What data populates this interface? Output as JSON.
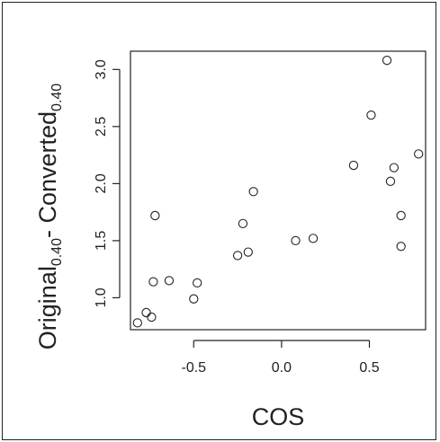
{
  "chart_data": {
    "type": "scatter",
    "xlabel": "COS",
    "ylabel": {
      "part1": "Original",
      "sub1": "0.40",
      "dash": "- ",
      "part2": "Converted",
      "sub2": "0.40"
    },
    "xlim": [
      -0.86,
      0.82
    ],
    "ylim": [
      0.72,
      3.16
    ],
    "xticks": [
      -0.5,
      0.0,
      0.5
    ],
    "xtick_labels": [
      "-0.5",
      "0.0",
      "0.5"
    ],
    "yticks": [
      1.0,
      1.5,
      2.0,
      2.5,
      3.0
    ],
    "ytick_labels": [
      "1.0",
      "1.5",
      "2.0",
      "2.5",
      "3.0"
    ],
    "grid": false,
    "marker": "open-circle",
    "points": [
      {
        "x": -0.82,
        "y": 0.78
      },
      {
        "x": -0.77,
        "y": 0.87
      },
      {
        "x": -0.74,
        "y": 0.83
      },
      {
        "x": -0.73,
        "y": 1.14
      },
      {
        "x": -0.72,
        "y": 1.72
      },
      {
        "x": -0.64,
        "y": 1.15
      },
      {
        "x": -0.5,
        "y": 0.99
      },
      {
        "x": -0.48,
        "y": 1.13
      },
      {
        "x": -0.25,
        "y": 1.37
      },
      {
        "x": -0.22,
        "y": 1.65
      },
      {
        "x": -0.19,
        "y": 1.4
      },
      {
        "x": -0.16,
        "y": 1.93
      },
      {
        "x": 0.08,
        "y": 1.5
      },
      {
        "x": 0.18,
        "y": 1.52
      },
      {
        "x": 0.41,
        "y": 2.16
      },
      {
        "x": 0.51,
        "y": 2.6
      },
      {
        "x": 0.6,
        "y": 3.08
      },
      {
        "x": 0.62,
        "y": 2.02
      },
      {
        "x": 0.64,
        "y": 2.14
      },
      {
        "x": 0.68,
        "y": 1.72
      },
      {
        "x": 0.68,
        "y": 1.45
      },
      {
        "x": 0.78,
        "y": 2.26
      }
    ]
  }
}
